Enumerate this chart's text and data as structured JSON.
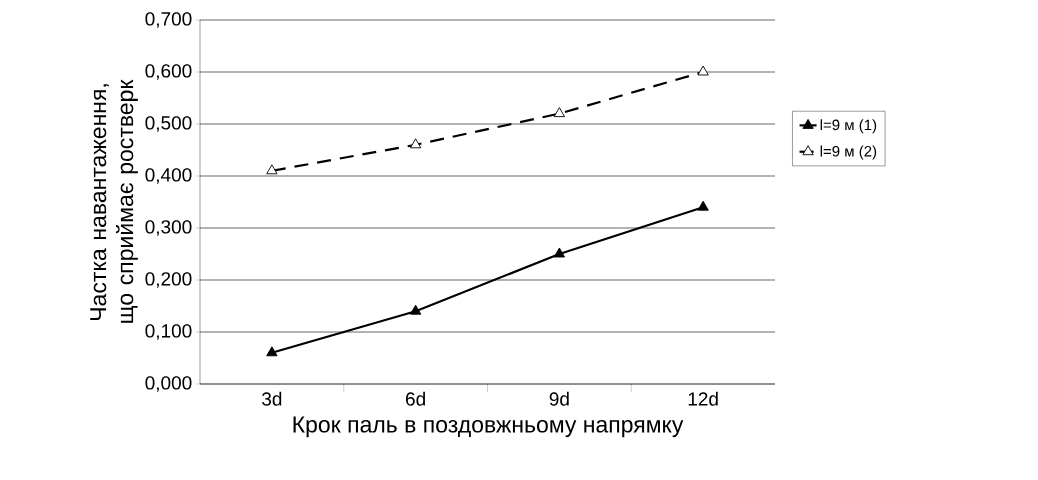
{
  "chart_data": {
    "type": "line",
    "xlabel": "Крок паль в поздовжньому напрямку",
    "ylabel": "Частка навантаження, що сприймає ростверк",
    "categories": [
      "3d",
      "6d",
      "9d",
      "12d"
    ],
    "series": [
      {
        "name": "l=9 м  (1)",
        "color": "#000000",
        "values": [
          0.06,
          0.14,
          0.25,
          0.34
        ],
        "line_style": "solid"
      },
      {
        "name": "l=9 м (2)",
        "color": "#000000",
        "values": [
          0.41,
          0.46,
          0.52,
          0.6
        ],
        "line_style": "dashed"
      }
    ],
    "ylim": [
      0,
      0.7
    ],
    "yticks": [
      {
        "value": 0,
        "label": "0,000"
      },
      {
        "value": 0.1,
        "label": "0,100"
      },
      {
        "value": 0.2,
        "label": "0,200"
      },
      {
        "value": 0.3,
        "label": "0,300"
      },
      {
        "value": 0.4,
        "label": "0,400"
      },
      {
        "value": 0.5,
        "label": "0,500"
      },
      {
        "value": 0.6,
        "label": "0,600"
      },
      {
        "value": 0.7,
        "label": "0,700"
      }
    ],
    "grid": "y",
    "legend": "right",
    "marker": "triangle"
  }
}
